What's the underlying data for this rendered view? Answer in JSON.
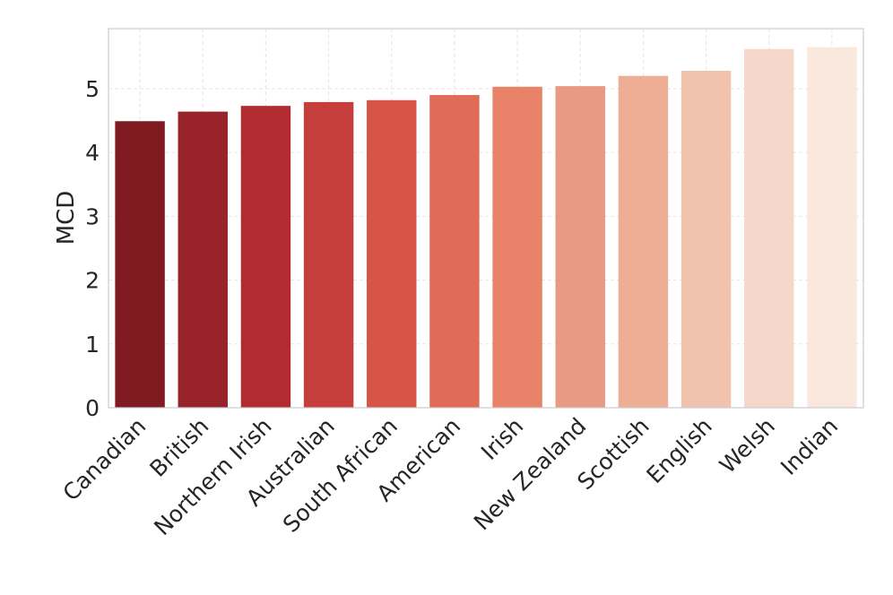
{
  "chart_data": {
    "type": "bar",
    "title": "",
    "xlabel": "",
    "ylabel": "MCD",
    "ylim": [
      0,
      5.94
    ],
    "yticks": [
      "0",
      "1",
      "2",
      "3",
      "4",
      "5"
    ],
    "grid": true,
    "categories": [
      "Canadian",
      "British",
      "Northern Irish",
      "Australian",
      "South African",
      "American",
      "Irish",
      "New Zealand",
      "Scottish",
      "English",
      "Welsh",
      "Indian"
    ],
    "values": [
      4.49,
      4.64,
      4.73,
      4.79,
      4.82,
      4.9,
      5.03,
      5.04,
      5.2,
      5.28,
      5.62,
      5.65
    ],
    "colors": [
      "#7f1a20",
      "#98232a",
      "#b22b30",
      "#c53e3b",
      "#d75546",
      "#e06c57",
      "#e8836a",
      "#e99a82",
      "#edae95",
      "#f1c2ae",
      "#f6d8cb",
      "#fae8df"
    ]
  }
}
